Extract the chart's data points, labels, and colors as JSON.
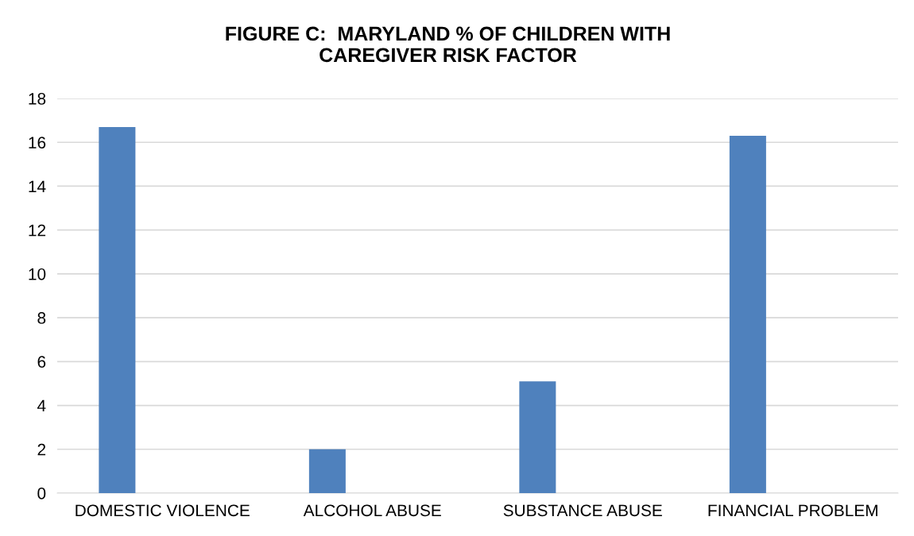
{
  "chart_data": {
    "type": "bar",
    "title": "FIGURE C:  MARYLAND % OF CHILDREN WITH\nCAREGIVER RISK FACTOR",
    "categories": [
      "DOMESTIC VIOLENCE",
      "ALCOHOL ABUSE",
      "SUBSTANCE ABUSE",
      "FINANCIAL PROBLEM"
    ],
    "values": [
      16.7,
      2.0,
      5.1,
      16.3
    ],
    "color": "#4f81bd",
    "ylim": [
      0,
      18
    ],
    "yticks": [
      0,
      2,
      4,
      6,
      8,
      10,
      12,
      14,
      16,
      18
    ],
    "grid": "y",
    "legend": false
  }
}
